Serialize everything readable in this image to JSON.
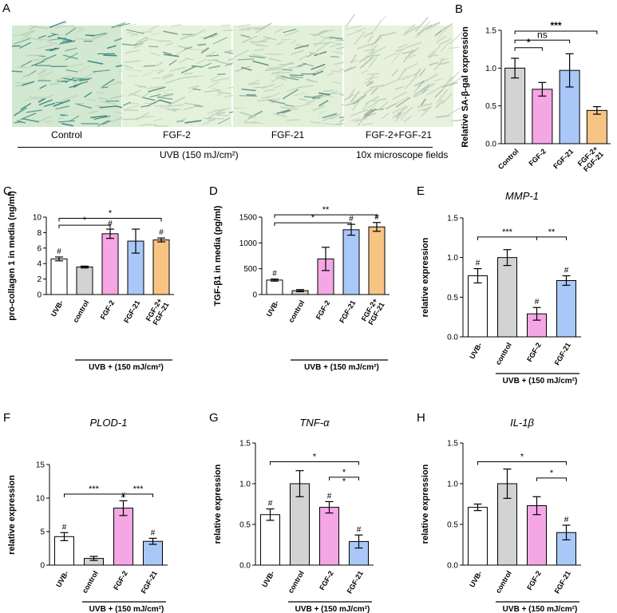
{
  "panel_a": {
    "letter": "A",
    "photos": [
      {
        "label": "Control",
        "tint": "#d3e8d0",
        "stain": "#2e7f7a",
        "density": 1.0
      },
      {
        "label": "FGF-2",
        "tint": "#e4f2dc",
        "stain": "#5a8a7a",
        "density": 0.45
      },
      {
        "label": "FGF-21",
        "tint": "#e2f0d9",
        "stain": "#4f8476",
        "density": 0.55
      },
      {
        "label": "FGF-2+FGF-21",
        "tint": "#e7f1dd",
        "stain": "#8aa890",
        "density": 0.25
      }
    ],
    "uvb_label": "UVB (150 mJ/cm²)",
    "magnification": "10x microscope fields"
  },
  "chart_data": [
    {
      "id": "B",
      "letter": "B",
      "type": "bar",
      "title": "",
      "title_italic": false,
      "categories": [
        "Control",
        "FGF-2",
        "FGF-21",
        "FGF-2+\nFGF-21"
      ],
      "values": [
        1.0,
        0.72,
        0.97,
        0.44
      ],
      "errors": [
        0.13,
        0.09,
        0.22,
        0.05
      ],
      "colors": [
        "#d3d3d3",
        "#f5a6e4",
        "#a9c8f7",
        "#f8c483"
      ],
      "ylabel": "Relative SA-β-gal expression",
      "ylim": [
        0,
        1.5
      ],
      "yticks": [
        0.0,
        0.5,
        1.0,
        1.5
      ],
      "tick_labels": [
        "0.0",
        "0.5",
        "1.0",
        "1.5"
      ],
      "xlabel": "",
      "xlabel_span": null,
      "marks": [],
      "brackets": [
        {
          "from": 0,
          "to": 1,
          "label": "*",
          "level": 1.27
        },
        {
          "from": 0,
          "to": 2,
          "label": "ns",
          "level": 1.37
        },
        {
          "from": 0,
          "to": 3,
          "label": "***",
          "level": 1.49
        }
      ]
    },
    {
      "id": "C",
      "letter": "C",
      "type": "bar",
      "title": "",
      "title_italic": false,
      "categories": [
        "UVB-",
        "control",
        "FGF-2",
        "FGF-21",
        "FGF-2+\nFGF-21"
      ],
      "values": [
        4.6,
        3.55,
        7.85,
        6.9,
        7.05
      ],
      "errors": [
        0.25,
        0.12,
        0.6,
        1.55,
        0.25
      ],
      "colors": [
        "#ffffff",
        "#d3d3d3",
        "#f5a6e4",
        "#a9c8f7",
        "#f8c483"
      ],
      "ylabel": "pro-collagen 1 in media (ng/ml)",
      "ylim": [
        0,
        10
      ],
      "yticks": [
        0,
        2,
        4,
        6,
        8,
        10
      ],
      "tick_labels": [
        "0",
        "2",
        "4",
        "6",
        "8",
        "10"
      ],
      "xlabel": "UVB + (150 mJ/cm²)",
      "xlabel_span": [
        1,
        4
      ],
      "marks": [
        "#",
        "",
        "#",
        "",
        "#"
      ],
      "brackets": [
        {
          "from": 0,
          "to": 2,
          "label": "*",
          "level": 8.95
        },
        {
          "from": 0,
          "to": 4,
          "label": "*",
          "level": 9.85
        }
      ]
    },
    {
      "id": "D",
      "letter": "D",
      "type": "bar",
      "title": "",
      "title_italic": false,
      "categories": [
        "UVB-",
        "control",
        "FGF-2",
        "FGF-21",
        "FGF-2+\nFGF-21"
      ],
      "values": [
        280,
        75,
        690,
        1255,
        1310
      ],
      "errors": [
        20,
        20,
        225,
        105,
        85
      ],
      "colors": [
        "#ffffff",
        "#d3d3d3",
        "#f5a6e4",
        "#a9c8f7",
        "#f8c483"
      ],
      "ylabel": "TGF-β1 in media (pg/ml)",
      "ylim": [
        0,
        1500
      ],
      "yticks": [
        0,
        500,
        1000,
        1500
      ],
      "tick_labels": [
        "0",
        "500",
        "1000",
        "1500"
      ],
      "xlabel": "UVB + (150 mJ/cm²)",
      "xlabel_span": [
        1,
        4
      ],
      "marks": [
        "#",
        "",
        "",
        "#",
        "#"
      ],
      "brackets": [
        {
          "from": 0,
          "to": 3,
          "label": "*",
          "level": 1390
        },
        {
          "from": 0,
          "to": 4,
          "label": "**",
          "level": 1545
        }
      ]
    },
    {
      "id": "E",
      "letter": "E",
      "type": "bar",
      "title": "MMP-1",
      "title_italic": true,
      "categories": [
        "UVB-",
        "control",
        "FGF-2",
        "FGF-21"
      ],
      "values": [
        0.77,
        1.0,
        0.29,
        0.71
      ],
      "errors": [
        0.09,
        0.1,
        0.08,
        0.06
      ],
      "colors": [
        "#ffffff",
        "#d3d3d3",
        "#f5a6e4",
        "#a9c8f7"
      ],
      "ylabel": "relative expression",
      "ylim": [
        0,
        1.5
      ],
      "yticks": [
        0.0,
        0.5,
        1.0,
        1.5
      ],
      "tick_labels": [
        "0.0",
        "0.5",
        "1.0",
        "1.5"
      ],
      "xlabel": "UVB + (150 mJ/cm²)",
      "xlabel_span": [
        1,
        3
      ],
      "marks": [
        "#",
        "",
        "#",
        "#"
      ],
      "brackets": [
        {
          "from": 0,
          "to": 2,
          "label": "***",
          "level": 1.26
        },
        {
          "from": 2,
          "to": 3,
          "label": "**",
          "level": 1.26
        }
      ]
    },
    {
      "id": "F",
      "letter": "F",
      "type": "bar",
      "title": "PLOD-1",
      "title_italic": true,
      "categories": [
        "UVB-",
        "control",
        "FGF-2",
        "FGF-21"
      ],
      "values": [
        4.25,
        1.0,
        8.5,
        3.55
      ],
      "errors": [
        0.6,
        0.3,
        1.1,
        0.45
      ],
      "colors": [
        "#ffffff",
        "#d3d3d3",
        "#f5a6e4",
        "#a9c8f7"
      ],
      "ylabel": "relative expression",
      "ylim": [
        0,
        15
      ],
      "yticks": [
        0,
        5,
        10,
        15
      ],
      "tick_labels": [
        "0",
        "5",
        "10",
        "15"
      ],
      "xlabel": "UVB + (150 mJ/cm²)",
      "xlabel_span": [
        1,
        3
      ],
      "marks": [
        "#",
        "",
        "#",
        "#"
      ],
      "brackets": [
        {
          "from": 0,
          "to": 2,
          "label": "***",
          "level": 10.6
        },
        {
          "from": 2,
          "to": 3,
          "label": "***",
          "level": 10.6
        }
      ]
    },
    {
      "id": "G",
      "letter": "G",
      "type": "bar",
      "title": "TNF-α",
      "title_italic": true,
      "categories": [
        "UVB-",
        "control",
        "FGF-2",
        "FGF-21"
      ],
      "values": [
        0.62,
        1.0,
        0.71,
        0.29
      ],
      "errors": [
        0.07,
        0.16,
        0.07,
        0.08
      ],
      "colors": [
        "#ffffff",
        "#d3d3d3",
        "#f5a6e4",
        "#a9c8f7"
      ],
      "ylabel": "relative expression",
      "ylim": [
        0,
        1.5
      ],
      "yticks": [
        0.0,
        0.5,
        1.0,
        1.5
      ],
      "tick_labels": [
        "0.0",
        "0.5",
        "1.0",
        "1.5"
      ],
      "xlabel": "UVB + (150 mJ/cm²)",
      "xlabel_span": [
        1,
        3
      ],
      "marks": [
        "#",
        "",
        "#",
        "#"
      ],
      "brackets": [
        {
          "from": 0,
          "to": 3,
          "label": "*",
          "level": 1.27
        },
        {
          "from": 2,
          "to": 3,
          "label": "*",
          "level": 1.08
        },
        {
          "from": 2,
          "to": 3,
          "label": "*",
          "level": 0.965,
          "text_only": true
        }
      ]
    },
    {
      "id": "H",
      "letter": "H",
      "type": "bar",
      "title": "IL-1β",
      "title_italic": true,
      "categories": [
        "UVB-",
        "control",
        "FGF-2",
        "FGF-21"
      ],
      "values": [
        0.71,
        1.0,
        0.73,
        0.4
      ],
      "errors": [
        0.04,
        0.18,
        0.11,
        0.09
      ],
      "colors": [
        "#ffffff",
        "#d3d3d3",
        "#f5a6e4",
        "#a9c8f7"
      ],
      "ylabel": "relative expression",
      "ylim": [
        0,
        1.5
      ],
      "yticks": [
        0.0,
        0.5,
        1.0,
        1.5
      ],
      "tick_labels": [
        "0.0",
        "0.5",
        "1.0",
        "1.5"
      ],
      "xlabel": "UVB + (150 mJ/cm²)",
      "xlabel_span": [
        1,
        3
      ],
      "marks": [
        "",
        "",
        "",
        "#"
      ],
      "brackets": [
        {
          "from": 0,
          "to": 3,
          "label": "*",
          "level": 1.27
        },
        {
          "from": 2,
          "to": 3,
          "label": "*",
          "level": 1.07
        }
      ]
    }
  ]
}
